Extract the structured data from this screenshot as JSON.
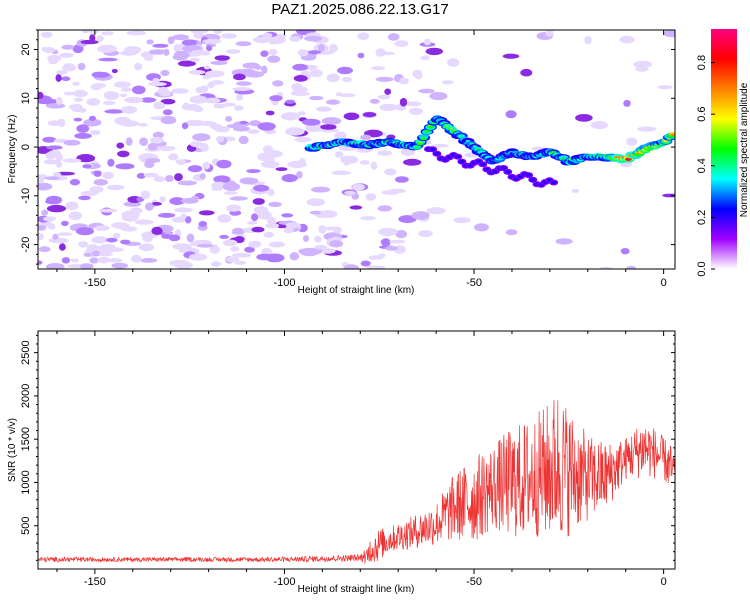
{
  "figure": {
    "title": "PAZ1.2025.086.22.13.G17"
  },
  "chart_data": [
    {
      "type": "heatmap",
      "xlabel": "Height of straight line (km)",
      "ylabel": "Frequency (Hz)",
      "xlim": [
        -165,
        3
      ],
      "ylim": [
        -25,
        24
      ],
      "xticks": [
        -150,
        -100,
        -50,
        0
      ],
      "yticks": [
        -20,
        -10,
        0,
        10,
        20
      ],
      "colorbar": {
        "label": "Normalized spectral amplitude",
        "range": [
          0,
          0.93
        ],
        "ticks": [
          "0.0",
          "0.2",
          "0.4",
          "0.6",
          "0.8"
        ],
        "colormap": [
          "#ffffff",
          "#a000ff",
          "#0000ff",
          "#00ffff",
          "#00ff00",
          "#ffff00",
          "#ff8000",
          "#ff0000",
          "#ff0080"
        ]
      },
      "ridge": {
        "description_points_x": [
          -92,
          -85,
          -78,
          -72,
          -65,
          -60,
          -55,
          -50,
          -45,
          -40,
          -35,
          -30,
          -25,
          -20,
          -15,
          -10,
          -5,
          0,
          3
        ],
        "description_points_y": [
          0,
          1,
          0.5,
          1,
          0,
          6,
          3,
          0,
          -3,
          -1,
          -2,
          -1,
          -3,
          -2,
          -2,
          -2.5,
          -0.5,
          1,
          3
        ],
        "peak": {
          "x": -10,
          "y": -2.5,
          "value": 0.93
        }
      }
    },
    {
      "type": "line",
      "xlabel": "Height of straight line (km)",
      "ylabel": "SNR (10 * v/v)",
      "xlim": [
        -165,
        3
      ],
      "ylim": [
        0,
        2750
      ],
      "xticks": [
        -150,
        -100,
        -50,
        0
      ],
      "yticks": [
        500,
        1000,
        1500,
        2000,
        2500
      ],
      "series": [
        {
          "color": "#ee3333",
          "envelope_x": [
            -165,
            -150,
            -120,
            -100,
            -80,
            -76,
            -72,
            -65,
            -60,
            -55,
            -50,
            -45,
            -40,
            -35,
            -30,
            -28,
            -25,
            -20,
            -15,
            -10,
            -5,
            0,
            3
          ],
          "envelope_base": [
            110,
            110,
            110,
            110,
            130,
            200,
            300,
            380,
            450,
            600,
            650,
            800,
            800,
            850,
            900,
            950,
            900,
            900,
            950,
            1200,
            1300,
            1200,
            1000
          ],
          "envelope_amp": [
            60,
            50,
            50,
            60,
            80,
            400,
            300,
            400,
            500,
            800,
            1000,
            1000,
            1300,
            1400,
            1600,
            1800,
            1500,
            1000,
            800,
            500,
            700,
            500,
            600
          ]
        }
      ]
    }
  ]
}
